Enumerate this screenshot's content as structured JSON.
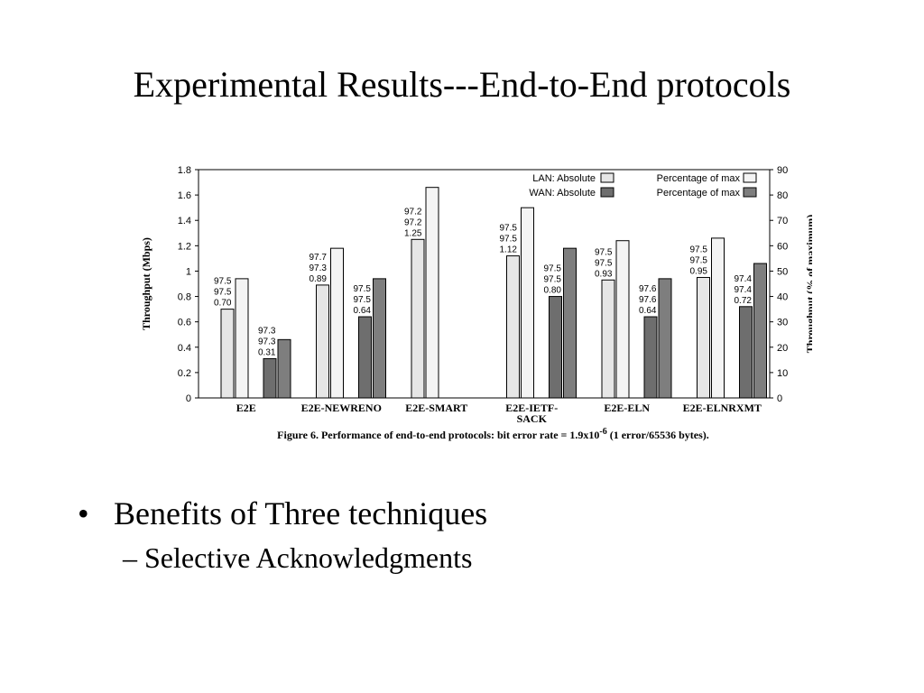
{
  "slide": {
    "title": "Experimental Results---End-to-End protocols",
    "bullet1": "Benefits of  Three techniques",
    "bullet_marker": "•",
    "sub_bullet1": "– Selective Acknowledgments"
  },
  "chart_data": {
    "type": "bar",
    "categories": [
      "E2E",
      "E2E-NEWRENO",
      "E2E-SMART",
      "E2E-IETF-SACK",
      "E2E-ELN",
      "E2E-ELNRXMT"
    ],
    "ylabel": "Throughput (Mbps)",
    "y2label": "Throughput (% of maximum)",
    "ylim": [
      0,
      1.8
    ],
    "y2lim": [
      0,
      90
    ],
    "yticks": [
      "0",
      "0.2",
      "0.4",
      "0.6",
      "0.8",
      "1",
      "1.2",
      "1.4",
      "1.6",
      "1.8"
    ],
    "y2ticks": [
      "0",
      "10",
      "20",
      "30",
      "40",
      "50",
      "60",
      "70",
      "80",
      "90"
    ],
    "caption_prefix": "Figure 6. Performance of end-to-end protocols: bit error rate = 1.9x10",
    "caption_exp": "-6",
    "caption_suffix": " (1 error/65536 bytes).",
    "legend": [
      {
        "label": "LAN: Absolute",
        "color": "#e6e6e6"
      },
      {
        "label": "Percentage of max",
        "color": "#f4f4f4"
      },
      {
        "label": "WAN: Absolute",
        "color": "#6e6e6e"
      },
      {
        "label": "Percentage of max",
        "color": "#7e7e7e"
      }
    ],
    "legend_position": "top-right",
    "series": [
      {
        "name": "LAN: Absolute",
        "values": [
          0.7,
          0.89,
          1.25,
          1.12,
          0.93,
          0.95
        ],
        "color": "#e6e6e6"
      },
      {
        "name": "Percentage of max",
        "values": [
          47,
          59,
          83,
          75,
          62,
          63
        ],
        "axis": "right",
        "color": "#f4f4f4"
      },
      {
        "name": "WAN: Absolute",
        "values": [
          0.31,
          0.64,
          null,
          0.8,
          0.64,
          0.72
        ],
        "color": "#6e6e6e"
      },
      {
        "name": "Percentage of max",
        "values": [
          23,
          47,
          null,
          59,
          47,
          53
        ],
        "axis": "right",
        "color": "#7e7e7e"
      }
    ],
    "lan_labels": [
      [
        "97.5",
        "97.5",
        "0.70"
      ],
      [
        "97.7",
        "97.3",
        "0.89"
      ],
      [
        "97.2",
        "97.2",
        "1.25"
      ],
      [
        "97.5",
        "97.5",
        "1.12"
      ],
      [
        "97.5",
        "97.5",
        "0.93"
      ],
      [
        "97.5",
        "97.5",
        "0.95"
      ]
    ],
    "wan_labels": [
      [
        "97.3",
        "97.3",
        "0.31"
      ],
      [
        "97.5",
        "97.5",
        "0.64"
      ],
      null,
      [
        "97.5",
        "97.5",
        "0.80"
      ],
      [
        "97.6",
        "97.6",
        "0.64"
      ],
      [
        "97.4",
        "97.4",
        "0.72"
      ]
    ]
  }
}
